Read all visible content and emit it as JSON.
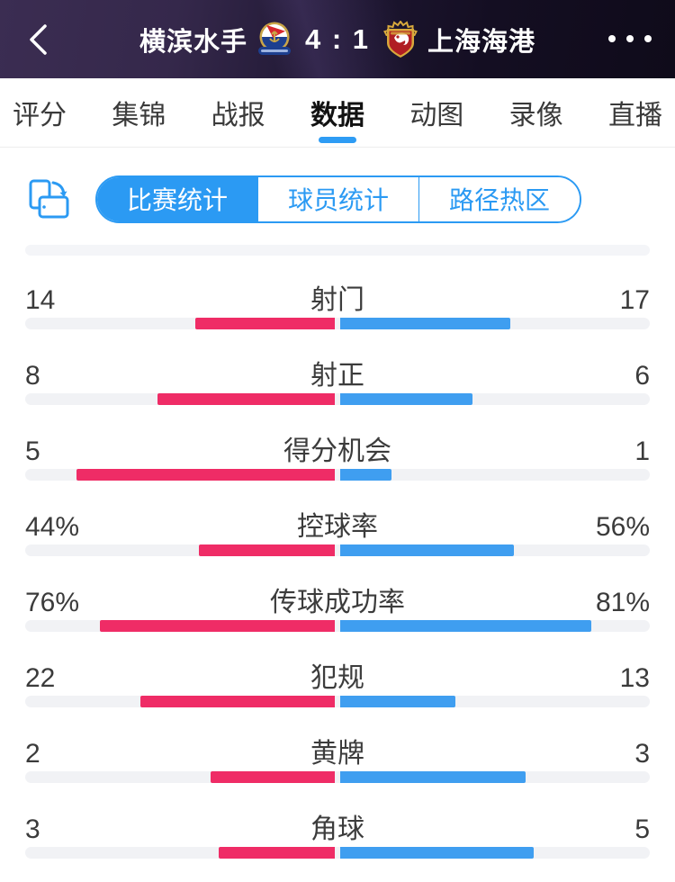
{
  "header": {
    "home_team": "横滨水手",
    "score": "4 : 1",
    "away_team": "上海海港"
  },
  "tabs": {
    "items": [
      "评分",
      "集锦",
      "战报",
      "数据",
      "动图",
      "录像",
      "直播"
    ],
    "active_index": 3,
    "accent_color": "#2e9cf4"
  },
  "subtabs": {
    "items": [
      "比赛统计",
      "球员统计",
      "路径热区"
    ],
    "active_index": 0,
    "accent_color": "#2b9af3"
  },
  "stats": {
    "home_color": "#ef2c66",
    "away_color": "#3f9ef0",
    "track_color": "#f1f2f5",
    "rows": [
      {
        "label": "射门",
        "home_text": "14",
        "away_text": "17",
        "home": 14,
        "away": 17,
        "type": "count"
      },
      {
        "label": "射正",
        "home_text": "8",
        "away_text": "6",
        "home": 8,
        "away": 6,
        "type": "count"
      },
      {
        "label": "得分机会",
        "home_text": "5",
        "away_text": "1",
        "home": 5,
        "away": 1,
        "type": "count"
      },
      {
        "label": "控球率",
        "home_text": "44%",
        "away_text": "56%",
        "home": 44,
        "away": 56,
        "type": "percent"
      },
      {
        "label": "传球成功率",
        "home_text": "76%",
        "away_text": "81%",
        "home": 76,
        "away": 81,
        "type": "percent"
      },
      {
        "label": "犯规",
        "home_text": "22",
        "away_text": "13",
        "home": 22,
        "away": 13,
        "type": "count"
      },
      {
        "label": "黄牌",
        "home_text": "2",
        "away_text": "3",
        "home": 2,
        "away": 3,
        "type": "count"
      },
      {
        "label": "角球",
        "home_text": "3",
        "away_text": "5",
        "home": 3,
        "away": 5,
        "type": "count"
      }
    ]
  }
}
